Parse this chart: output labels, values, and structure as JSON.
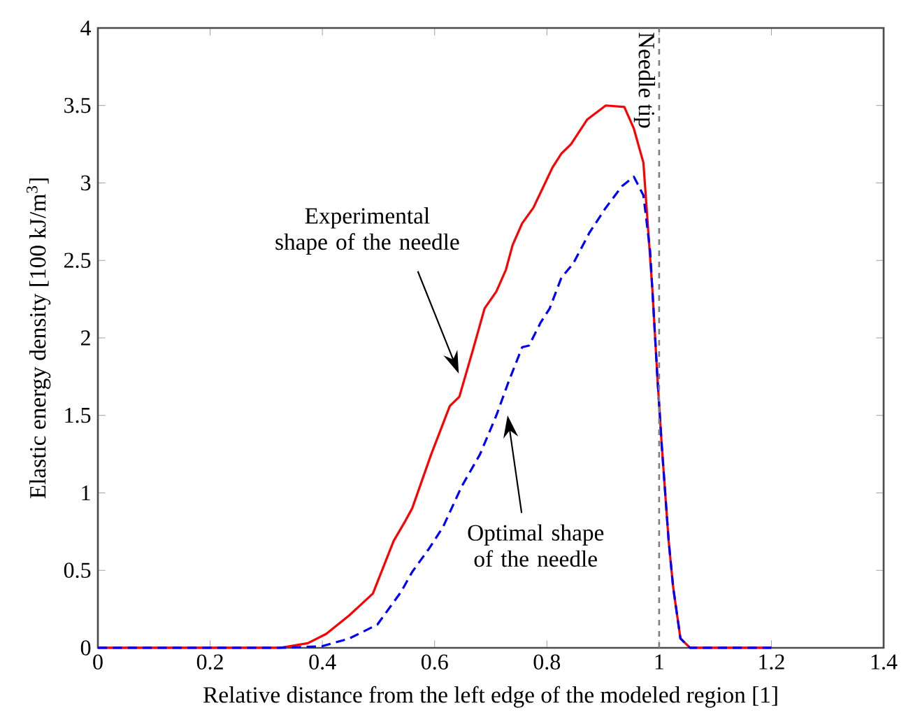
{
  "chart_data": {
    "type": "line",
    "xlabel": "Relative distance from the left edge of the modeled region [1]",
    "ylabel": "Elastic energy density [100 kJ/m$^{3}$]",
    "xlim": [
      0,
      1.4
    ],
    "ylim": [
      0,
      4
    ],
    "xticks": [
      0,
      0.2,
      0.4,
      0.6,
      0.8,
      1,
      1.2,
      1.4
    ],
    "yticks": [
      0,
      0.5,
      1,
      1.5,
      2,
      2.5,
      3,
      3.5,
      4
    ],
    "grid": false,
    "series": [
      {
        "color": "#ff0000",
        "line_style": "solid",
        "x": [
          0,
          0.1,
          0.2,
          0.3,
          0.324,
          0.374,
          0.407,
          0.448,
          0.49,
          0.527,
          0.548,
          0.56,
          0.594,
          0.61,
          0.627,
          0.644,
          0.668,
          0.689,
          0.71,
          0.727,
          0.739,
          0.756,
          0.776,
          0.81,
          0.826,
          0.843,
          0.872,
          0.905,
          0.938,
          0.955,
          0.972,
          0.988,
          0.997,
          1.005,
          1.017,
          1.025,
          1.038,
          1.055,
          1.1,
          1.2
        ],
        "values": [
          0,
          0,
          0,
          0,
          0,
          0.03,
          0.09,
          0.21,
          0.35,
          0.69,
          0.82,
          0.9,
          1.25,
          1.4,
          1.56,
          1.62,
          1.92,
          2.19,
          2.3,
          2.44,
          2.6,
          2.74,
          2.84,
          3.1,
          3.19,
          3.25,
          3.41,
          3.5,
          3.49,
          3.35,
          3.13,
          2.31,
          1.74,
          1.29,
          0.69,
          0.39,
          0.06,
          0,
          0,
          0
        ]
      },
      {
        "color": "#0000ff",
        "line_style": "dashed",
        "x": [
          0,
          0.1,
          0.2,
          0.3,
          0.324,
          0.399,
          0.448,
          0.498,
          0.54,
          0.56,
          0.59,
          0.615,
          0.648,
          0.681,
          0.71,
          0.731,
          0.756,
          0.768,
          0.789,
          0.805,
          0.826,
          0.847,
          0.876,
          0.905,
          0.934,
          0.955,
          0.972,
          0.984,
          0.997,
          1.005,
          1.017,
          1.025,
          1.038,
          1.055,
          1.1,
          1.2
        ],
        "values": [
          0,
          0,
          0,
          0,
          0,
          0.01,
          0.06,
          0.15,
          0.36,
          0.49,
          0.64,
          0.78,
          1.04,
          1.25,
          1.5,
          1.71,
          1.94,
          1.95,
          2.1,
          2.19,
          2.39,
          2.48,
          2.68,
          2.84,
          2.98,
          3.04,
          2.92,
          2.56,
          1.74,
          1.29,
          0.69,
          0.39,
          0.06,
          0,
          0,
          0
        ]
      }
    ],
    "ref_lines": [
      {
        "axis": "x",
        "value": 1,
        "label": "Needle tip",
        "color": "#808080",
        "line_style": "dashed"
      }
    ],
    "annotations": [
      "Experimental shape of the needle",
      "Optimal shape of the needle"
    ]
  }
}
